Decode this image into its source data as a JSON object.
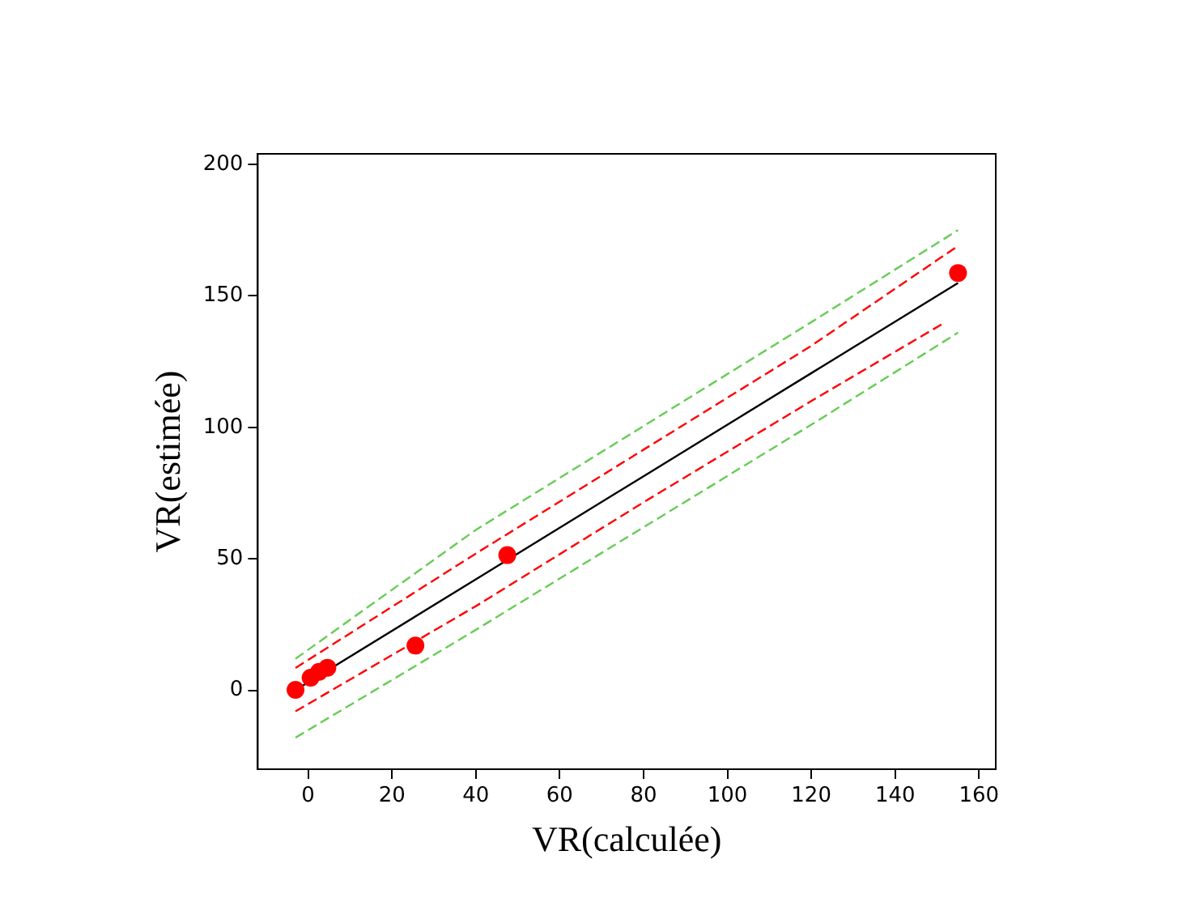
{
  "chart_data": {
    "type": "scatter",
    "xlabel": "VR(calculée)",
    "ylabel": "VR(estimée)",
    "xlim": [
      -12,
      164
    ],
    "ylim": [
      -30,
      204
    ],
    "xticks": [
      0,
      20,
      40,
      60,
      80,
      100,
      120,
      140,
      160
    ],
    "yticks": [
      0,
      50,
      100,
      150,
      200
    ],
    "grid": false,
    "legend": false,
    "marker": "circle",
    "series": [
      {
        "type": "scatter",
        "color": "#ff0000",
        "x": [
          -3,
          0.6,
          2.6,
          4.6,
          25.6,
          47.5,
          155
        ],
        "values": [
          0.2,
          4.8,
          7,
          8.6,
          17,
          51.4,
          158.7
        ]
      },
      {
        "type": "line",
        "color": "#000000",
        "line_style": "solid",
        "marker": "none",
        "x": [
          -3,
          40,
          80,
          120,
          155
        ],
        "values": [
          0.1,
          42.2,
          81.4,
          120.6,
          154.9
        ]
      },
      {
        "type": "line",
        "color": "#ff0000",
        "line_style": "dashed",
        "marker": "none",
        "x": [
          -3,
          40,
          80,
          120,
          155
        ],
        "values": [
          8.5,
          52,
          91.5,
          131,
          169
        ]
      },
      {
        "type": "line",
        "color": "#ff0000",
        "line_style": "dashed",
        "marker": "none",
        "x": [
          -3,
          40,
          80,
          120,
          152
        ],
        "values": [
          -8,
          32,
          71.5,
          110,
          140
        ]
      },
      {
        "type": "line",
        "color": "#66cc55",
        "line_style": "dashed",
        "marker": "none",
        "x": [
          -3,
          40,
          80,
          120,
          155
        ],
        "values": [
          12,
          61,
          100.5,
          140,
          175
        ]
      },
      {
        "type": "line",
        "color": "#66cc55",
        "line_style": "dashed",
        "marker": "none",
        "x": [
          -3,
          40,
          80,
          120,
          155
        ],
        "values": [
          -18,
          23,
          62,
          101,
          136
        ]
      }
    ]
  }
}
